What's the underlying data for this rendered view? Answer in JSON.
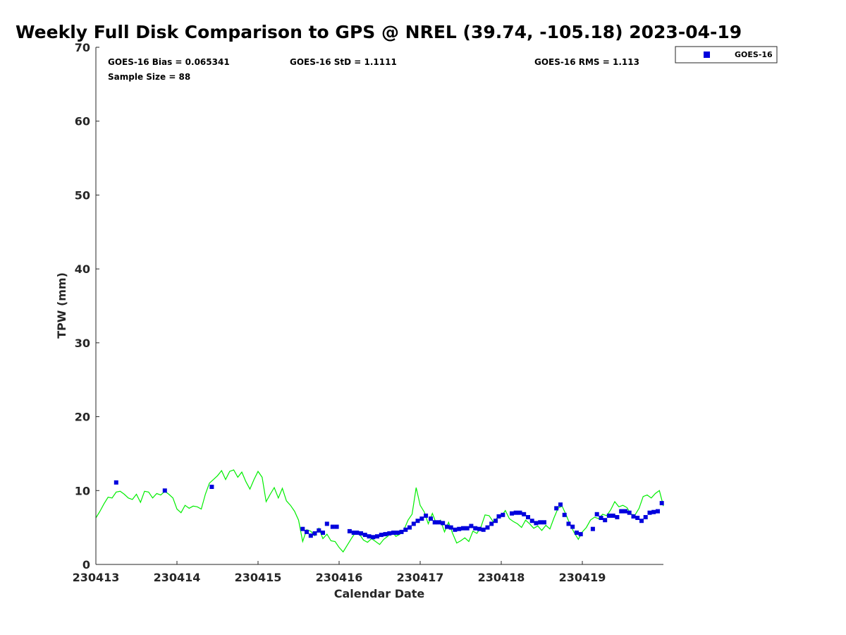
{
  "chart_data": {
    "type": "scatter",
    "title": "Weekly Full Disk Comparison to GPS @ NREL (39.74, -105.18) 2023-04-19",
    "xlabel": "Calendar Date",
    "ylabel": "TPW (mm)",
    "xlim": [
      0,
      7
    ],
    "ylim": [
      0,
      70
    ],
    "x_ticks": [
      0,
      1,
      2,
      3,
      4,
      5,
      6
    ],
    "x_tick_labels": [
      "230413",
      "230414",
      "230415",
      "230416",
      "230417",
      "230418",
      "230419"
    ],
    "y_ticks": [
      0,
      10,
      20,
      30,
      40,
      50,
      60,
      70
    ],
    "y_tick_labels": [
      "0",
      "10",
      "20",
      "30",
      "40",
      "50",
      "60",
      "70"
    ],
    "grid": false,
    "legend_position": "top-right",
    "stats": {
      "bias": "GOES-16 Bias = 0.065341",
      "std": "GOES-16 StD = 1.1111",
      "rms": "GOES-16 RMS = 1.113",
      "sample": "Sample Size = 88"
    },
    "colors": {
      "goes16": "#0000dd",
      "gps": "#00ee00"
    },
    "series": [
      {
        "name": "GOES-16",
        "marker": "square",
        "points": [
          [
            0.25,
            11.1
          ],
          [
            0.85,
            10.0
          ],
          [
            1.43,
            10.5
          ],
          [
            2.55,
            4.8
          ],
          [
            2.6,
            4.4
          ],
          [
            2.65,
            3.9
          ],
          [
            2.7,
            4.2
          ],
          [
            2.75,
            4.6
          ],
          [
            2.8,
            4.3
          ],
          [
            2.85,
            5.5
          ],
          [
            2.92,
            5.1
          ],
          [
            2.97,
            5.1
          ],
          [
            3.13,
            4.5
          ],
          [
            3.18,
            4.3
          ],
          [
            3.22,
            4.3
          ],
          [
            3.27,
            4.2
          ],
          [
            3.32,
            4.0
          ],
          [
            3.37,
            3.8
          ],
          [
            3.42,
            3.7
          ],
          [
            3.47,
            3.8
          ],
          [
            3.52,
            4.0
          ],
          [
            3.57,
            4.1
          ],
          [
            3.62,
            4.2
          ],
          [
            3.67,
            4.3
          ],
          [
            3.72,
            4.3
          ],
          [
            3.77,
            4.4
          ],
          [
            3.82,
            4.7
          ],
          [
            3.87,
            5.0
          ],
          [
            3.92,
            5.5
          ],
          [
            3.97,
            5.9
          ],
          [
            4.02,
            6.2
          ],
          [
            4.07,
            6.6
          ],
          [
            4.13,
            6.2
          ],
          [
            4.18,
            5.7
          ],
          [
            4.23,
            5.7
          ],
          [
            4.28,
            5.6
          ],
          [
            4.33,
            5.1
          ],
          [
            4.38,
            5.0
          ],
          [
            4.43,
            4.7
          ],
          [
            4.48,
            4.8
          ],
          [
            4.53,
            4.9
          ],
          [
            4.58,
            4.9
          ],
          [
            4.63,
            5.2
          ],
          [
            4.68,
            4.9
          ],
          [
            4.73,
            4.8
          ],
          [
            4.78,
            4.7
          ],
          [
            4.83,
            5.0
          ],
          [
            4.88,
            5.5
          ],
          [
            4.93,
            5.9
          ],
          [
            4.97,
            6.5
          ],
          [
            5.02,
            6.7
          ],
          [
            5.13,
            6.9
          ],
          [
            5.18,
            7.0
          ],
          [
            5.23,
            7.0
          ],
          [
            5.28,
            6.8
          ],
          [
            5.33,
            6.4
          ],
          [
            5.38,
            5.9
          ],
          [
            5.43,
            5.6
          ],
          [
            5.48,
            5.7
          ],
          [
            5.53,
            5.7
          ],
          [
            5.68,
            7.6
          ],
          [
            5.73,
            8.1
          ],
          [
            5.78,
            6.7
          ],
          [
            5.83,
            5.5
          ],
          [
            5.88,
            5.1
          ],
          [
            5.93,
            4.3
          ],
          [
            5.98,
            4.1
          ],
          [
            6.13,
            4.8
          ],
          [
            6.18,
            6.8
          ],
          [
            6.23,
            6.3
          ],
          [
            6.28,
            6.0
          ],
          [
            6.33,
            6.6
          ],
          [
            6.38,
            6.6
          ],
          [
            6.43,
            6.4
          ],
          [
            6.48,
            7.2
          ],
          [
            6.53,
            7.2
          ],
          [
            6.58,
            7.0
          ],
          [
            6.63,
            6.5
          ],
          [
            6.68,
            6.3
          ],
          [
            6.73,
            5.9
          ],
          [
            6.78,
            6.4
          ],
          [
            6.83,
            7.0
          ],
          [
            6.88,
            7.1
          ],
          [
            6.93,
            7.2
          ],
          [
            6.98,
            8.3
          ]
        ]
      },
      {
        "name": "GPS",
        "marker": "line",
        "points": [
          [
            0.0,
            6.3
          ],
          [
            0.05,
            7.2
          ],
          [
            0.1,
            8.2
          ],
          [
            0.15,
            9.1
          ],
          [
            0.2,
            9.0
          ],
          [
            0.25,
            9.8
          ],
          [
            0.3,
            9.9
          ],
          [
            0.35,
            9.5
          ],
          [
            0.4,
            9.0
          ],
          [
            0.45,
            8.8
          ],
          [
            0.5,
            9.5
          ],
          [
            0.55,
            8.4
          ],
          [
            0.6,
            9.9
          ],
          [
            0.65,
            9.8
          ],
          [
            0.7,
            9.0
          ],
          [
            0.75,
            9.6
          ],
          [
            0.8,
            9.4
          ],
          [
            0.85,
            9.9
          ],
          [
            0.9,
            9.5
          ],
          [
            0.95,
            9.0
          ],
          [
            1.0,
            7.5
          ],
          [
            1.05,
            7.0
          ],
          [
            1.1,
            8.0
          ],
          [
            1.15,
            7.6
          ],
          [
            1.2,
            7.9
          ],
          [
            1.25,
            7.8
          ],
          [
            1.3,
            7.5
          ],
          [
            1.35,
            9.5
          ],
          [
            1.4,
            11.0
          ],
          [
            1.45,
            11.5
          ],
          [
            1.5,
            12.0
          ],
          [
            1.55,
            12.7
          ],
          [
            1.6,
            11.5
          ],
          [
            1.65,
            12.6
          ],
          [
            1.7,
            12.8
          ],
          [
            1.75,
            11.8
          ],
          [
            1.8,
            12.5
          ],
          [
            1.85,
            11.2
          ],
          [
            1.9,
            10.2
          ],
          [
            1.95,
            11.5
          ],
          [
            2.0,
            12.6
          ],
          [
            2.05,
            11.8
          ],
          [
            2.1,
            8.5
          ],
          [
            2.15,
            9.5
          ],
          [
            2.2,
            10.4
          ],
          [
            2.25,
            9.0
          ],
          [
            2.3,
            10.3
          ],
          [
            2.35,
            8.6
          ],
          [
            2.4,
            8.0
          ],
          [
            2.45,
            7.2
          ],
          [
            2.5,
            6.0
          ],
          [
            2.55,
            3.1
          ],
          [
            2.6,
            4.7
          ],
          [
            2.65,
            4.5
          ],
          [
            2.7,
            3.9
          ],
          [
            2.75,
            4.9
          ],
          [
            2.8,
            3.5
          ],
          [
            2.85,
            4.1
          ],
          [
            2.9,
            3.2
          ],
          [
            2.95,
            3.1
          ],
          [
            3.0,
            2.3
          ],
          [
            3.05,
            1.7
          ],
          [
            3.1,
            2.6
          ],
          [
            3.15,
            3.5
          ],
          [
            3.2,
            4.3
          ],
          [
            3.25,
            4.1
          ],
          [
            3.3,
            3.3
          ],
          [
            3.35,
            3.0
          ],
          [
            3.4,
            3.5
          ],
          [
            3.45,
            3.1
          ],
          [
            3.5,
            2.7
          ],
          [
            3.55,
            3.4
          ],
          [
            3.6,
            3.8
          ],
          [
            3.65,
            4.5
          ],
          [
            3.7,
            3.8
          ],
          [
            3.75,
            4.1
          ],
          [
            3.8,
            4.7
          ],
          [
            3.85,
            6.0
          ],
          [
            3.9,
            6.8
          ],
          [
            3.95,
            10.4
          ],
          [
            4.0,
            8.0
          ],
          [
            4.05,
            7.1
          ],
          [
            4.1,
            5.5
          ],
          [
            4.15,
            6.9
          ],
          [
            4.2,
            5.5
          ],
          [
            4.25,
            6.0
          ],
          [
            4.3,
            4.4
          ],
          [
            4.35,
            5.7
          ],
          [
            4.4,
            4.2
          ],
          [
            4.45,
            2.9
          ],
          [
            4.5,
            3.2
          ],
          [
            4.55,
            3.6
          ],
          [
            4.6,
            3.1
          ],
          [
            4.65,
            4.5
          ],
          [
            4.7,
            4.2
          ],
          [
            4.75,
            5.1
          ],
          [
            4.8,
            6.7
          ],
          [
            4.85,
            6.6
          ],
          [
            4.9,
            5.8
          ],
          [
            4.95,
            6.3
          ],
          [
            5.0,
            6.5
          ],
          [
            5.05,
            7.3
          ],
          [
            5.1,
            6.2
          ],
          [
            5.15,
            5.8
          ],
          [
            5.2,
            5.5
          ],
          [
            5.25,
            5.0
          ],
          [
            5.3,
            6.0
          ],
          [
            5.35,
            5.5
          ],
          [
            5.4,
            4.9
          ],
          [
            5.45,
            5.2
          ],
          [
            5.5,
            4.6
          ],
          [
            5.55,
            5.3
          ],
          [
            5.6,
            4.8
          ],
          [
            5.65,
            6.3
          ],
          [
            5.7,
            7.6
          ],
          [
            5.75,
            7.9
          ],
          [
            5.8,
            6.7
          ],
          [
            5.85,
            5.4
          ],
          [
            5.9,
            4.3
          ],
          [
            5.95,
            3.4
          ],
          [
            6.0,
            4.4
          ],
          [
            6.05,
            5.0
          ],
          [
            6.1,
            6.0
          ],
          [
            6.15,
            6.4
          ],
          [
            6.2,
            6.2
          ],
          [
            6.25,
            6.8
          ],
          [
            6.3,
            6.6
          ],
          [
            6.35,
            7.4
          ],
          [
            6.4,
            8.5
          ],
          [
            6.45,
            7.8
          ],
          [
            6.5,
            8.0
          ],
          [
            6.55,
            7.7
          ],
          [
            6.6,
            6.8
          ],
          [
            6.65,
            6.7
          ],
          [
            6.7,
            7.6
          ],
          [
            6.75,
            9.2
          ],
          [
            6.8,
            9.4
          ],
          [
            6.85,
            9.0
          ],
          [
            6.9,
            9.6
          ],
          [
            6.95,
            10.0
          ],
          [
            7.0,
            7.9
          ]
        ]
      }
    ]
  }
}
